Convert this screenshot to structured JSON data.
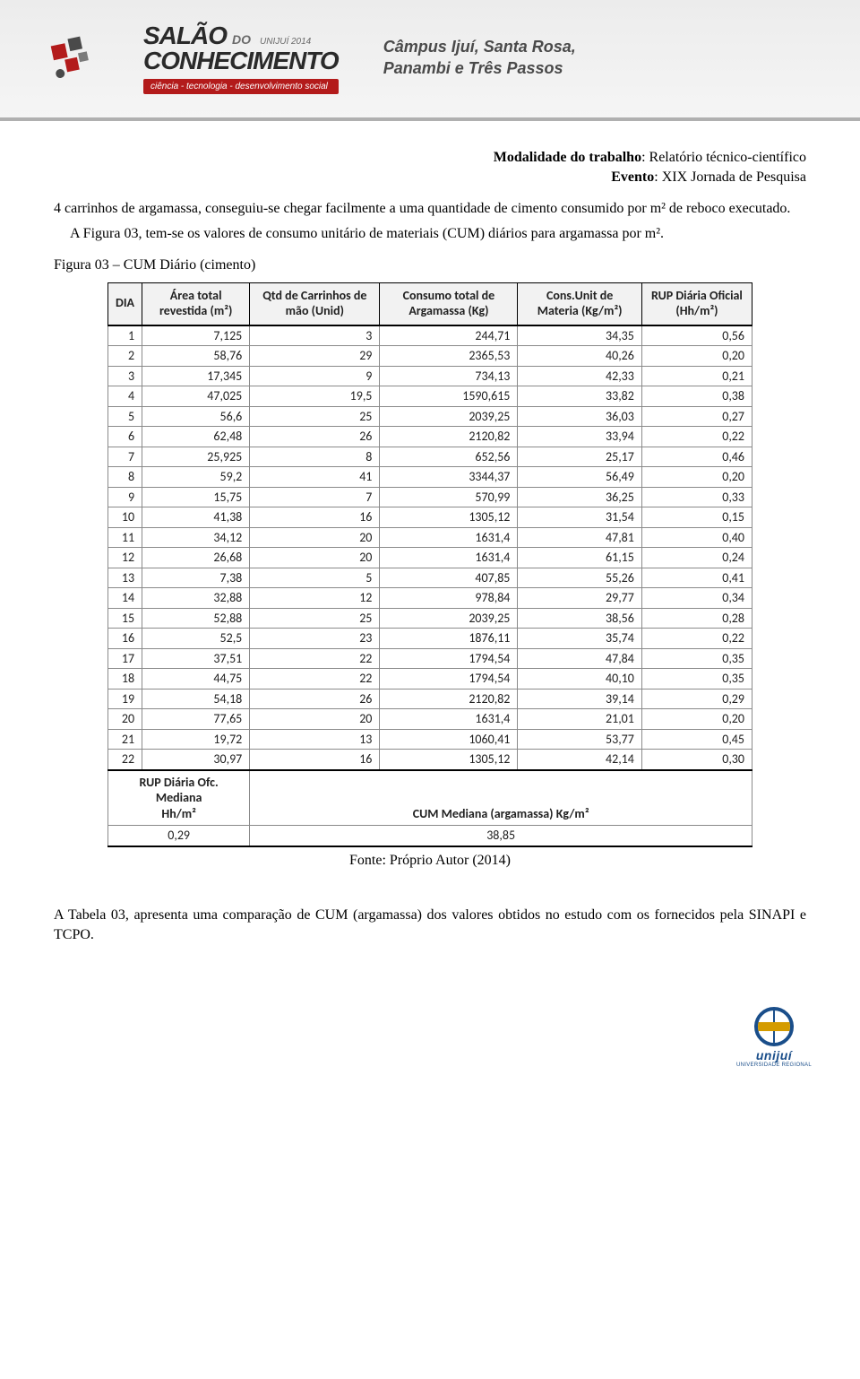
{
  "banner": {
    "salao": "SALÃO",
    "do": "DO",
    "unijui_year": "UNIJUÍ 2014",
    "conhecimento": "CONHECIMENTO",
    "tagline": "ciência - tecnologia - desenvolvimento social",
    "campus_line1": "Câmpus Ijuí, Santa Rosa,",
    "campus_line2": "Panambi e Três Passos"
  },
  "meta": {
    "modalidade_label": "Modalidade do trabalho",
    "modalidade_value": ": Relatório técnico-científico",
    "evento_label": "Evento",
    "evento_value": ": XIX Jornada de Pesquisa"
  },
  "body": {
    "p1": "4 carrinhos de argamassa, conseguiu-se chegar facilmente a uma quantidade de cimento consumido por m² de reboco executado.",
    "p2": "A Figura 03, tem-se os valores de consumo unitário de materiais (CUM) diários para argamassa por m².",
    "fig_caption": "Figura 03 – CUM Diário (cimento)",
    "fonte": "Fonte: Próprio Autor (2014)",
    "p3": "A Tabela 03, apresenta uma comparação de CUM (argamassa) dos valores obtidos no estudo com os fornecidos pela SINAPI e TCPO."
  },
  "table": {
    "columns": [
      "DIA",
      "Área total revestida (m²)",
      "Qtd de Carrinhos de mão (Unid)",
      "Consumo total de Argamassa (Kg)",
      "Cons.Unit de Materia (Kg/m²)",
      "RUP Diária Oficial (Hh/m²)"
    ],
    "rows": [
      [
        "1",
        "7,125",
        "3",
        "244,71",
        "34,35",
        "0,56"
      ],
      [
        "2",
        "58,76",
        "29",
        "2365,53",
        "40,26",
        "0,20"
      ],
      [
        "3",
        "17,345",
        "9",
        "734,13",
        "42,33",
        "0,21"
      ],
      [
        "4",
        "47,025",
        "19,5",
        "1590,615",
        "33,82",
        "0,38"
      ],
      [
        "5",
        "56,6",
        "25",
        "2039,25",
        "36,03",
        "0,27"
      ],
      [
        "6",
        "62,48",
        "26",
        "2120,82",
        "33,94",
        "0,22"
      ],
      [
        "7",
        "25,925",
        "8",
        "652,56",
        "25,17",
        "0,46"
      ],
      [
        "8",
        "59,2",
        "41",
        "3344,37",
        "56,49",
        "0,20"
      ],
      [
        "9",
        "15,75",
        "7",
        "570,99",
        "36,25",
        "0,33"
      ],
      [
        "10",
        "41,38",
        "16",
        "1305,12",
        "31,54",
        "0,15"
      ],
      [
        "11",
        "34,12",
        "20",
        "1631,4",
        "47,81",
        "0,40"
      ],
      [
        "12",
        "26,68",
        "20",
        "1631,4",
        "61,15",
        "0,24"
      ],
      [
        "13",
        "7,38",
        "5",
        "407,85",
        "55,26",
        "0,41"
      ],
      [
        "14",
        "32,88",
        "12",
        "978,84",
        "29,77",
        "0,34"
      ],
      [
        "15",
        "52,88",
        "25",
        "2039,25",
        "38,56",
        "0,28"
      ],
      [
        "16",
        "52,5",
        "23",
        "1876,11",
        "35,74",
        "0,22"
      ],
      [
        "17",
        "37,51",
        "22",
        "1794,54",
        "47,84",
        "0,35"
      ],
      [
        "18",
        "44,75",
        "22",
        "1794,54",
        "40,10",
        "0,35"
      ],
      [
        "19",
        "54,18",
        "26",
        "2120,82",
        "39,14",
        "0,29"
      ],
      [
        "20",
        "77,65",
        "20",
        "1631,4",
        "21,01",
        "0,20"
      ],
      [
        "21",
        "19,72",
        "13",
        "1060,41",
        "53,77",
        "0,45"
      ],
      [
        "22",
        "30,97",
        "16",
        "1305,12",
        "42,14",
        "0,30"
      ]
    ],
    "summary": {
      "left_label_l1": "RUP Diária Ofc. Mediana",
      "left_label_l2": "Hh/m²",
      "left_value": "0,29",
      "right_label": "CUM Mediana (argamassa)  Kg/m²",
      "right_value": "38,85"
    },
    "header_bg": "#f2f2f2",
    "border_color": "#8a8a8a",
    "header_border": "#000000",
    "font": "Calibri",
    "font_size_pt": 11
  },
  "footer": {
    "brand": "unijuí",
    "brand_sub": "UNIVERSIDADE REGIONAL"
  },
  "colors": {
    "banner_bg_top": "#ececec",
    "banner_bg_bottom": "#f5f5f5",
    "banner_border": "#b0b0b0",
    "accent_red": "#b31b1b",
    "text_dark": "#2a2a2a",
    "unijui_blue": "#1a4e8a",
    "unijui_gold": "#d49b00"
  }
}
